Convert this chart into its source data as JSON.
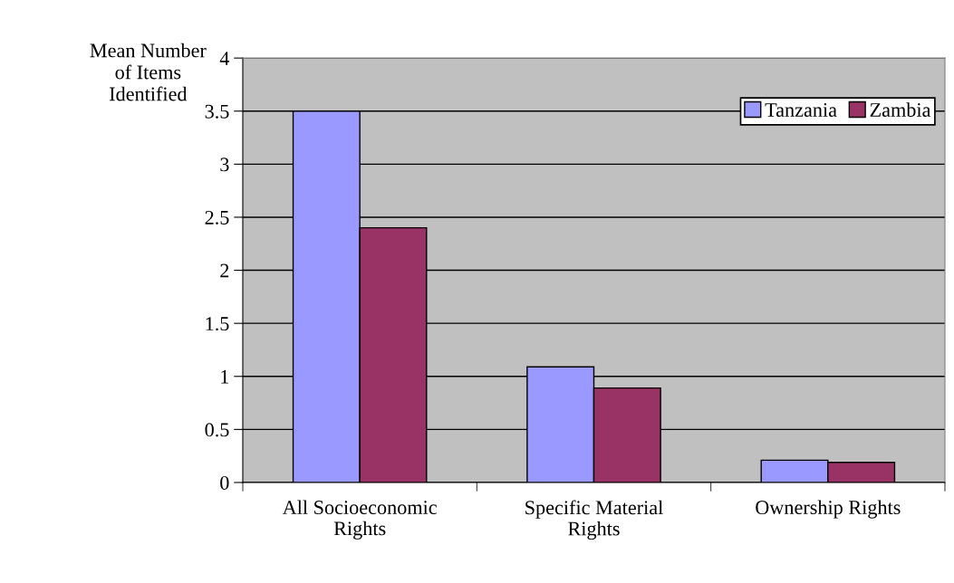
{
  "chart_data": {
    "type": "bar",
    "ylabel": "Mean Number\nof Items\nIdentified",
    "categories": [
      "All Socioeconomic\nRights",
      "Specific Material\nRights",
      "Ownership Rights"
    ],
    "series": [
      {
        "name": "Tanzania",
        "color": "#9999ff",
        "values": [
          3.5,
          1.09,
          0.21
        ]
      },
      {
        "name": "Zambia",
        "color": "#993366",
        "values": [
          2.4,
          0.89,
          0.19
        ]
      }
    ],
    "ylim": [
      0,
      4
    ],
    "yticks": [
      0,
      0.5,
      1,
      1.5,
      2,
      2.5,
      3,
      3.5,
      4
    ],
    "grid": "y",
    "legend": "top right"
  }
}
